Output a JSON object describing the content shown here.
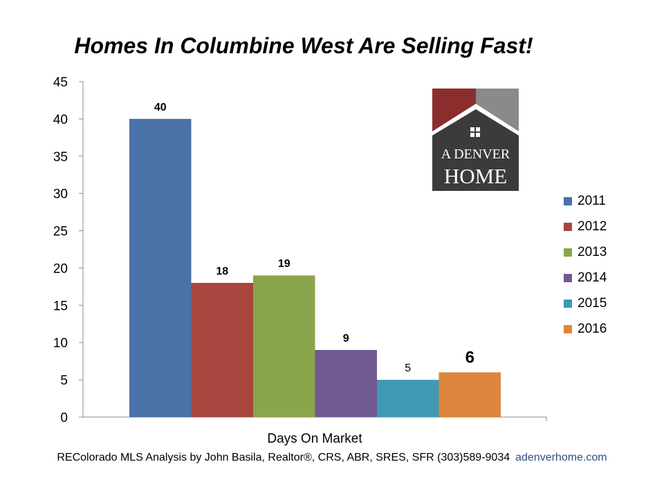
{
  "title": "Homes In Columbine West Are Selling Fast!",
  "chart_data": {
    "type": "bar",
    "categories": [
      "Days On Market"
    ],
    "xlabel": "Days On Market",
    "ylabel": "",
    "ylim": [
      0,
      45
    ],
    "yticks": [
      0,
      5,
      10,
      15,
      20,
      25,
      30,
      35,
      40,
      45
    ],
    "grid": false,
    "legend_position": "right",
    "series": [
      {
        "name": "2011",
        "value": 40,
        "color": "#4a72a8",
        "label": "40",
        "label_bold": true
      },
      {
        "name": "2012",
        "value": 18,
        "color": "#a8453f",
        "label": "18",
        "label_bold": true
      },
      {
        "name": "2013",
        "value": 19,
        "color": "#8aa54b",
        "label": "19",
        "label_bold": true
      },
      {
        "name": "2014",
        "value": 9,
        "color": "#715992",
        "label": "9",
        "label_bold": true
      },
      {
        "name": "2015",
        "value": 5,
        "color": "#3e9bb3",
        "label": "5",
        "label_bold": false
      },
      {
        "name": "2016",
        "value": 6,
        "color": "#dd853e",
        "label": "6",
        "label_bold": true,
        "label_large": true
      }
    ]
  },
  "logo": {
    "line1": "A DENVER",
    "line2": "HOME",
    "icon": "house-window-icon"
  },
  "footer": {
    "text": "REColorado MLS  Analysis by John Basila, Realtor®, CRS, ABR, SRES, SFR  (303)589-9034",
    "url": "adenverhome.com"
  }
}
